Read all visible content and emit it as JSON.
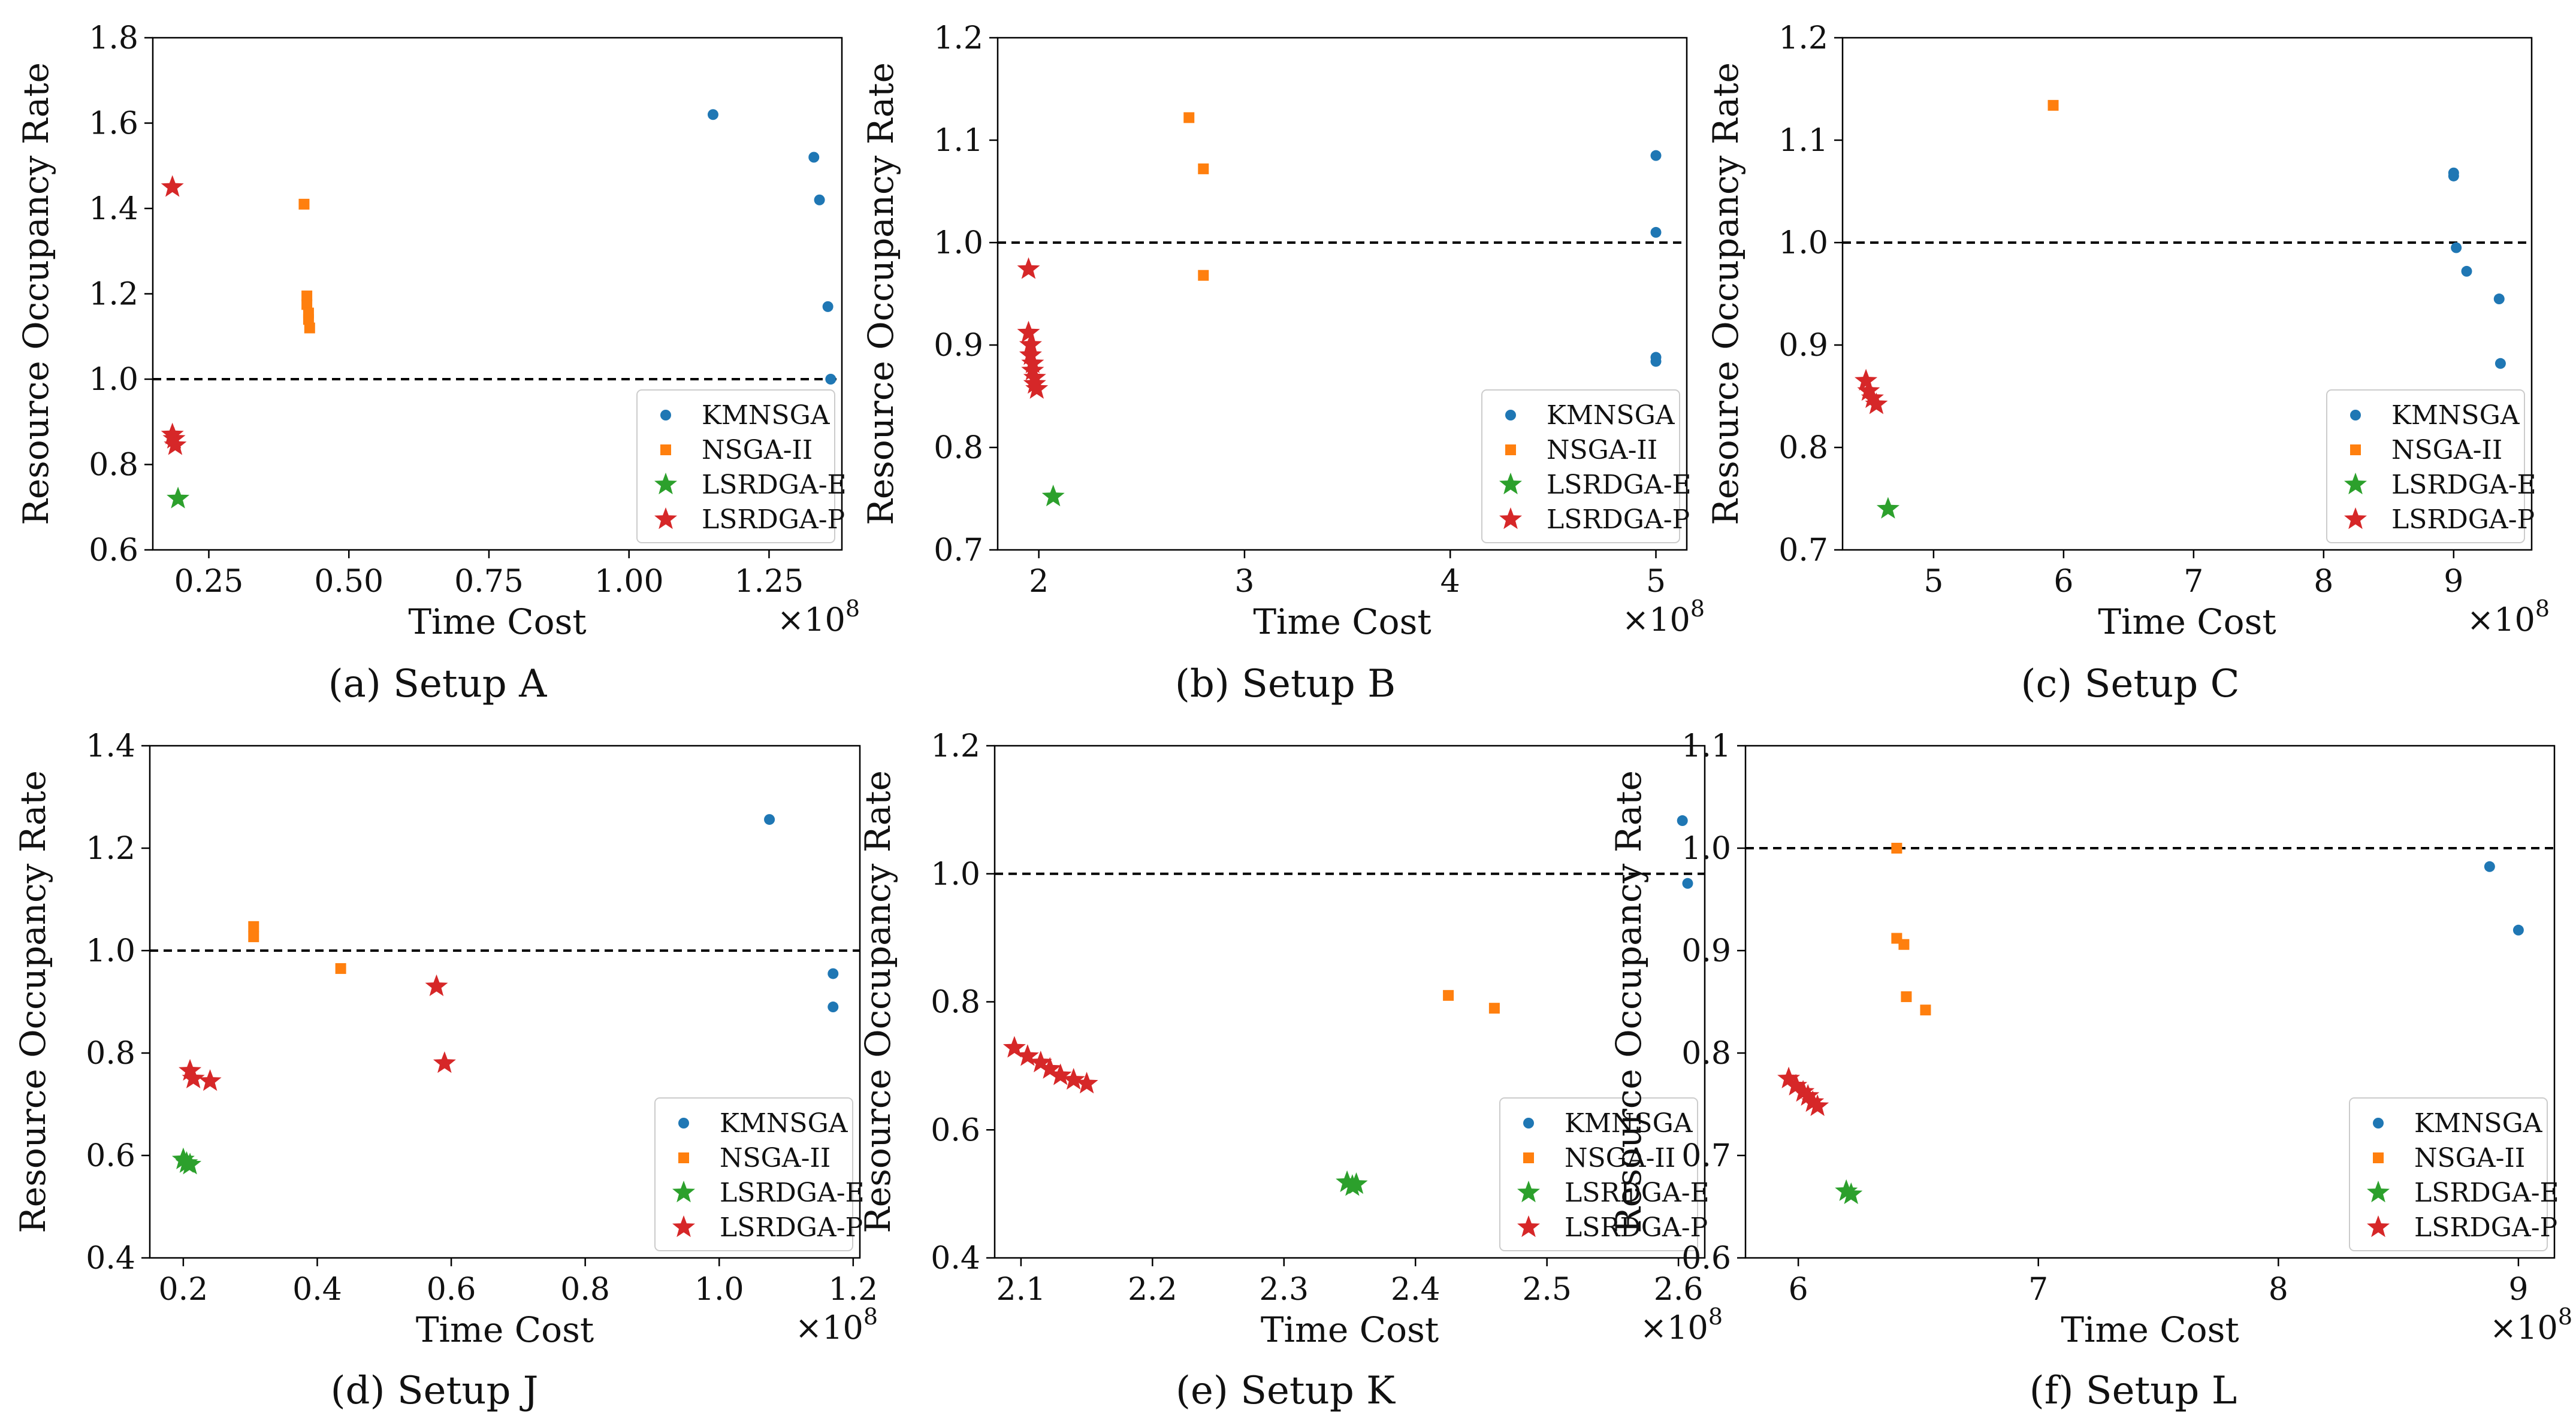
{
  "figure": {
    "legend_labels": [
      "KMNSGA",
      "NSGA-II",
      "LSRDGA-E",
      "LSRDGA-P"
    ],
    "series_colors": {
      "KMNSGA": "#1f77b4",
      "NSGA-II": "#ff7f0e",
      "LSRDGA-E": "#2ca02c",
      "LSRDGA-P": "#d62728"
    },
    "reference_line_color": "#000000"
  },
  "chart_data": [
    {
      "type": "scatter",
      "caption": "(a) Setup A",
      "xlabel": "Time Cost",
      "ylabel": "Resource Occupancy Rate",
      "x_multiplier": "×10",
      "x_exponent": "8",
      "xlim": [
        0.15,
        1.38
      ],
      "ylim": [
        0.6,
        1.8
      ],
      "xticks": [
        0.25,
        0.5,
        0.75,
        1.0,
        1.25
      ],
      "xtick_labels": [
        "0.25",
        "0.50",
        "0.75",
        "1.00",
        "1.25"
      ],
      "yticks": [
        0.6,
        0.8,
        1.0,
        1.2,
        1.4,
        1.6,
        1.8
      ],
      "ytick_labels": [
        "0.6",
        "0.8",
        "1.0",
        "1.2",
        "1.4",
        "1.6",
        "1.8"
      ],
      "reference_y": 1.0,
      "legend": "lower right",
      "series": [
        {
          "name": "KMNSGA",
          "marker": "circle",
          "x": [
            1.15,
            1.33,
            1.34,
            1.355,
            1.36
          ],
          "y": [
            1.62,
            1.52,
            1.42,
            1.17,
            1.0
          ]
        },
        {
          "name": "NSGA-II",
          "marker": "square",
          "x": [
            0.42,
            0.425,
            0.425,
            0.428,
            0.428,
            0.43
          ],
          "y": [
            1.41,
            1.195,
            1.175,
            1.155,
            1.14,
            1.12
          ]
        },
        {
          "name": "LSRDGA-E",
          "marker": "star",
          "x": [
            0.195
          ],
          "y": [
            0.72
          ]
        },
        {
          "name": "LSRDGA-P",
          "marker": "star",
          "x": [
            0.185,
            0.185,
            0.188,
            0.19
          ],
          "y": [
            1.45,
            0.87,
            0.86,
            0.845
          ]
        }
      ]
    },
    {
      "type": "scatter",
      "caption": "(b) Setup B",
      "xlabel": "Time Cost",
      "ylabel": "Resource Occupancy Rate",
      "x_multiplier": "×10",
      "x_exponent": "8",
      "xlim": [
        1.8,
        5.15
      ],
      "ylim": [
        0.7,
        1.2
      ],
      "xticks": [
        2,
        3,
        4,
        5
      ],
      "xtick_labels": [
        "2",
        "3",
        "4",
        "5"
      ],
      "yticks": [
        0.7,
        0.8,
        0.9,
        1.0,
        1.1,
        1.2
      ],
      "ytick_labels": [
        "0.7",
        "0.8",
        "0.9",
        "1.0",
        "1.1",
        "1.2"
      ],
      "reference_y": 1.0,
      "legend": "lower right",
      "series": [
        {
          "name": "KMNSGA",
          "marker": "circle",
          "x": [
            5.0,
            5.0,
            5.0,
            5.0
          ],
          "y": [
            1.085,
            1.01,
            0.888,
            0.884
          ]
        },
        {
          "name": "NSGA-II",
          "marker": "square",
          "x": [
            2.73,
            2.8,
            2.8
          ],
          "y": [
            1.122,
            1.072,
            0.968
          ]
        },
        {
          "name": "LSRDGA-E",
          "marker": "star",
          "x": [
            2.07
          ],
          "y": [
            0.752
          ]
        },
        {
          "name": "LSRDGA-P",
          "marker": "star",
          "x": [
            1.95,
            1.95,
            1.96,
            1.96,
            1.97,
            1.97,
            1.98,
            1.98,
            1.99
          ],
          "y": [
            0.974,
            0.912,
            0.9,
            0.89,
            0.882,
            0.875,
            0.868,
            0.862,
            0.857
          ]
        }
      ]
    },
    {
      "type": "scatter",
      "caption": "(c) Setup C",
      "xlabel": "Time Cost",
      "ylabel": "Resource Occupancy Rate",
      "x_multiplier": "×10",
      "x_exponent": "8",
      "xlim": [
        4.3,
        9.6
      ],
      "ylim": [
        0.7,
        1.2
      ],
      "xticks": [
        5,
        6,
        7,
        8,
        9
      ],
      "xtick_labels": [
        "5",
        "6",
        "7",
        "8",
        "9"
      ],
      "yticks": [
        0.7,
        0.8,
        0.9,
        1.0,
        1.1,
        1.2
      ],
      "ytick_labels": [
        "0.7",
        "0.8",
        "0.9",
        "1.0",
        "1.1",
        "1.2"
      ],
      "reference_y": 1.0,
      "legend": "lower right",
      "series": [
        {
          "name": "KMNSGA",
          "marker": "circle",
          "x": [
            9.0,
            9.0,
            9.02,
            9.1,
            9.35,
            9.36
          ],
          "y": [
            1.068,
            1.065,
            0.995,
            0.972,
            0.945,
            0.882
          ]
        },
        {
          "name": "NSGA-II",
          "marker": "square",
          "x": [
            5.92
          ],
          "y": [
            1.134
          ]
        },
        {
          "name": "LSRDGA-E",
          "marker": "star",
          "x": [
            4.65
          ],
          "y": [
            0.74
          ]
        },
        {
          "name": "LSRDGA-P",
          "marker": "star",
          "x": [
            4.48,
            4.5,
            4.53,
            4.56
          ],
          "y": [
            0.865,
            0.855,
            0.848,
            0.842
          ]
        }
      ]
    },
    {
      "type": "scatter",
      "caption": "(d) Setup J",
      "xlabel": "Time Cost",
      "ylabel": "Resource Occupancy Rate",
      "x_multiplier": "×10",
      "x_exponent": "8",
      "xlim": [
        0.15,
        1.21
      ],
      "ylim": [
        0.4,
        1.4
      ],
      "xticks": [
        0.2,
        0.4,
        0.6,
        0.8,
        1.0,
        1.2
      ],
      "xtick_labels": [
        "0.2",
        "0.4",
        "0.6",
        "0.8",
        "1.0",
        "1.2"
      ],
      "yticks": [
        0.4,
        0.6,
        0.8,
        1.0,
        1.2,
        1.4
      ],
      "ytick_labels": [
        "0.4",
        "0.6",
        "0.8",
        "1.0",
        "1.2",
        "1.4"
      ],
      "reference_y": 1.0,
      "legend": "lower right",
      "series": [
        {
          "name": "KMNSGA",
          "marker": "circle",
          "x": [
            1.075,
            1.17,
            1.17
          ],
          "y": [
            1.256,
            0.955,
            0.89
          ]
        },
        {
          "name": "NSGA-II",
          "marker": "square",
          "x": [
            0.305,
            0.305,
            0.435
          ],
          "y": [
            1.047,
            1.027,
            0.965
          ]
        },
        {
          "name": "LSRDGA-E",
          "marker": "star",
          "x": [
            0.2,
            0.205,
            0.21
          ],
          "y": [
            0.592,
            0.585,
            0.582
          ]
        },
        {
          "name": "LSRDGA-P",
          "marker": "star",
          "x": [
            0.21,
            0.215,
            0.24,
            0.578,
            0.59
          ],
          "y": [
            0.765,
            0.75,
            0.745,
            0.93,
            0.78
          ]
        }
      ]
    },
    {
      "type": "scatter",
      "caption": "(e) Setup K",
      "xlabel": "Time Cost",
      "ylabel": "Resource Occupancy Rate",
      "x_multiplier": "×10",
      "x_exponent": "8",
      "xlim": [
        2.08,
        2.62
      ],
      "ylim": [
        0.4,
        1.2
      ],
      "xticks": [
        2.1,
        2.2,
        2.3,
        2.4,
        2.5,
        2.6
      ],
      "xtick_labels": [
        "2.1",
        "2.2",
        "2.3",
        "2.4",
        "2.5",
        "2.6"
      ],
      "yticks": [
        0.4,
        0.6,
        0.8,
        1.0,
        1.2
      ],
      "ytick_labels": [
        "0.4",
        "0.6",
        "0.8",
        "1.0",
        "1.2"
      ],
      "reference_y": 1.0,
      "legend": "lower right",
      "series": [
        {
          "name": "KMNSGA",
          "marker": "circle",
          "x": [
            2.603,
            2.607
          ],
          "y": [
            1.083,
            0.985
          ]
        },
        {
          "name": "NSGA-II",
          "marker": "square",
          "x": [
            2.425,
            2.46
          ],
          "y": [
            0.81,
            0.79
          ]
        },
        {
          "name": "LSRDGA-E",
          "marker": "star",
          "x": [
            2.348,
            2.352,
            2.355
          ],
          "y": [
            0.518,
            0.512,
            0.515
          ]
        },
        {
          "name": "LSRDGA-P",
          "marker": "star",
          "x": [
            2.095,
            2.105,
            2.115,
            2.122,
            2.13,
            2.14,
            2.15
          ],
          "y": [
            0.728,
            0.715,
            0.705,
            0.695,
            0.685,
            0.678,
            0.672
          ]
        }
      ]
    },
    {
      "type": "scatter",
      "caption": "(f) Setup L",
      "xlabel": "Time Cost",
      "ylabel": "Resource Occupancy Rate",
      "x_multiplier": "×10",
      "x_exponent": "8",
      "xlim": [
        5.78,
        9.15
      ],
      "ylim": [
        0.6,
        1.1
      ],
      "xticks": [
        6,
        7,
        8,
        9
      ],
      "xtick_labels": [
        "6",
        "7",
        "8",
        "9"
      ],
      "yticks": [
        0.6,
        0.7,
        0.8,
        0.9,
        1.0,
        1.1
      ],
      "ytick_labels": [
        "0.6",
        "0.7",
        "0.8",
        "0.9",
        "1.0",
        "1.1"
      ],
      "reference_y": 1.0,
      "legend": "lower right",
      "series": [
        {
          "name": "KMNSGA",
          "marker": "circle",
          "x": [
            8.88,
            9.0
          ],
          "y": [
            0.982,
            0.92
          ]
        },
        {
          "name": "NSGA-II",
          "marker": "square",
          "x": [
            6.41,
            6.41,
            6.44,
            6.45,
            6.53
          ],
          "y": [
            1.0,
            0.912,
            0.906,
            0.855,
            0.842
          ]
        },
        {
          "name": "LSRDGA-E",
          "marker": "star",
          "x": [
            6.2,
            6.22
          ],
          "y": [
            0.665,
            0.662
          ]
        },
        {
          "name": "LSRDGA-P",
          "marker": "star",
          "x": [
            5.96,
            5.99,
            6.02,
            6.04,
            6.06,
            6.08
          ],
          "y": [
            0.775,
            0.768,
            0.762,
            0.758,
            0.752,
            0.748
          ]
        }
      ]
    }
  ]
}
